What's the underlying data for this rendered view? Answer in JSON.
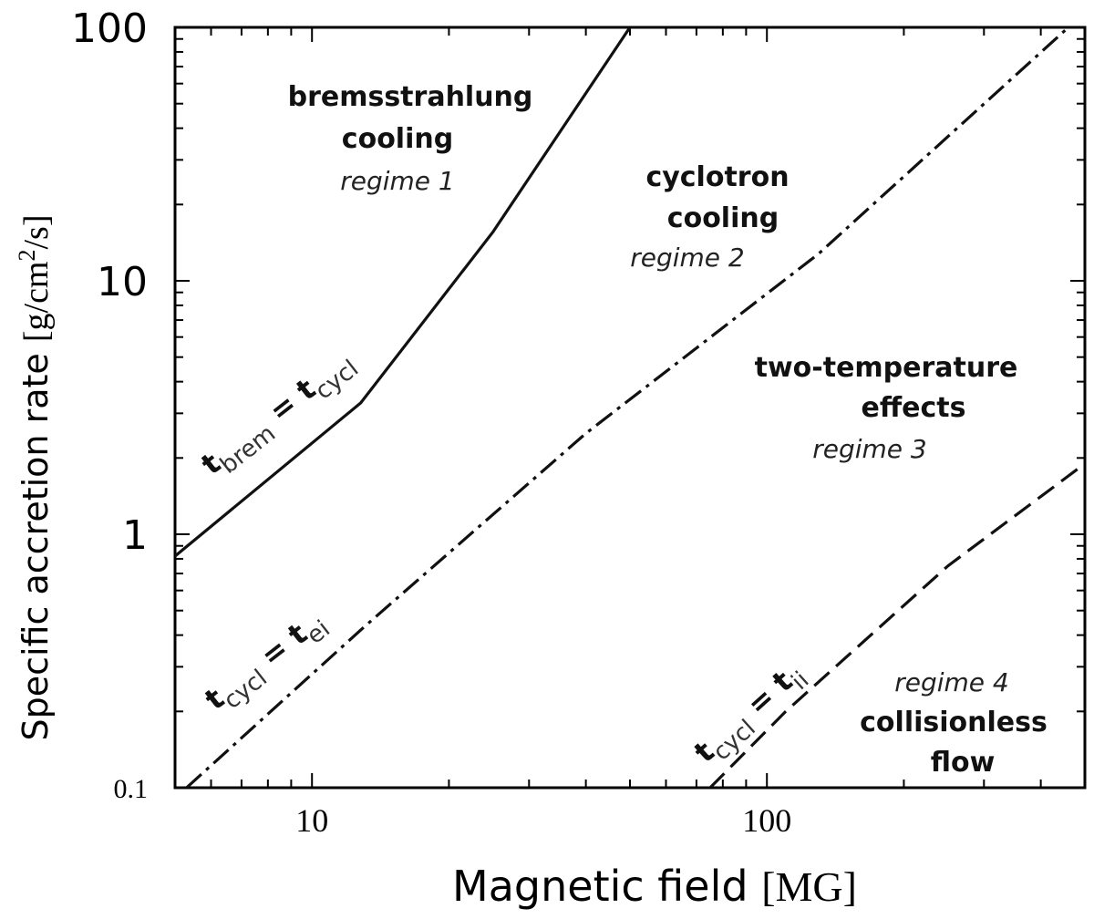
{
  "chart_data": {
    "type": "line",
    "xscale": "log",
    "yscale": "log",
    "xlim": [
      5,
      500
    ],
    "ylim": [
      0.1,
      100
    ],
    "xlabel": {
      "text": "Magnetic field ",
      "unit": "[MG]"
    },
    "ylabel": {
      "text": "Specific accretion rate ",
      "unit_pre": "[g/cm",
      "unit_sup": "2",
      "unit_post": "/s]"
    },
    "x_ticks": [
      {
        "value": 10,
        "label": "10"
      },
      {
        "value": 100,
        "label": "100"
      }
    ],
    "y_ticks": [
      {
        "value": 0.1,
        "label": "0.1"
      },
      {
        "value": 1,
        "label": "1"
      },
      {
        "value": 10,
        "label": "10"
      },
      {
        "value": 100,
        "label": "100"
      }
    ],
    "grid": false,
    "series": [
      {
        "style": "solid",
        "label_main": "t",
        "label_sub1": "brem",
        "label_eq": " = t",
        "label_sub2": "cycl",
        "x": [
          5,
          12.8,
          25,
          50
        ],
        "y": [
          0.82,
          3.3,
          15.6,
          100
        ]
      },
      {
        "style": "dashdot",
        "label_main": "t",
        "label_sub1": "cycl",
        "label_eq": " = t",
        "label_sub2": "ei",
        "x": [
          5.3,
          13,
          40,
          130,
          460
        ],
        "y": [
          0.1,
          0.43,
          2.5,
          12.8,
          100
        ]
      },
      {
        "style": "dashed",
        "label_main": "t",
        "label_sub1": "cycl",
        "label_eq": " = t",
        "label_sub2": "ii",
        "x": [
          75,
          110,
          250,
          500
        ],
        "y": [
          0.1,
          0.2,
          0.75,
          1.9
        ]
      }
    ],
    "annotations": [
      {
        "lines": [
          "bremsstrahlung",
          "cooling"
        ],
        "italic": "regime 1"
      },
      {
        "lines": [
          "cyclotron",
          "cooling"
        ],
        "italic": "regime 2"
      },
      {
        "lines": [
          "two-temperature",
          "effects"
        ],
        "italic": "regime 3"
      },
      {
        "lines": [
          "collisionless",
          "flow"
        ],
        "italic": "regime 4"
      }
    ]
  }
}
